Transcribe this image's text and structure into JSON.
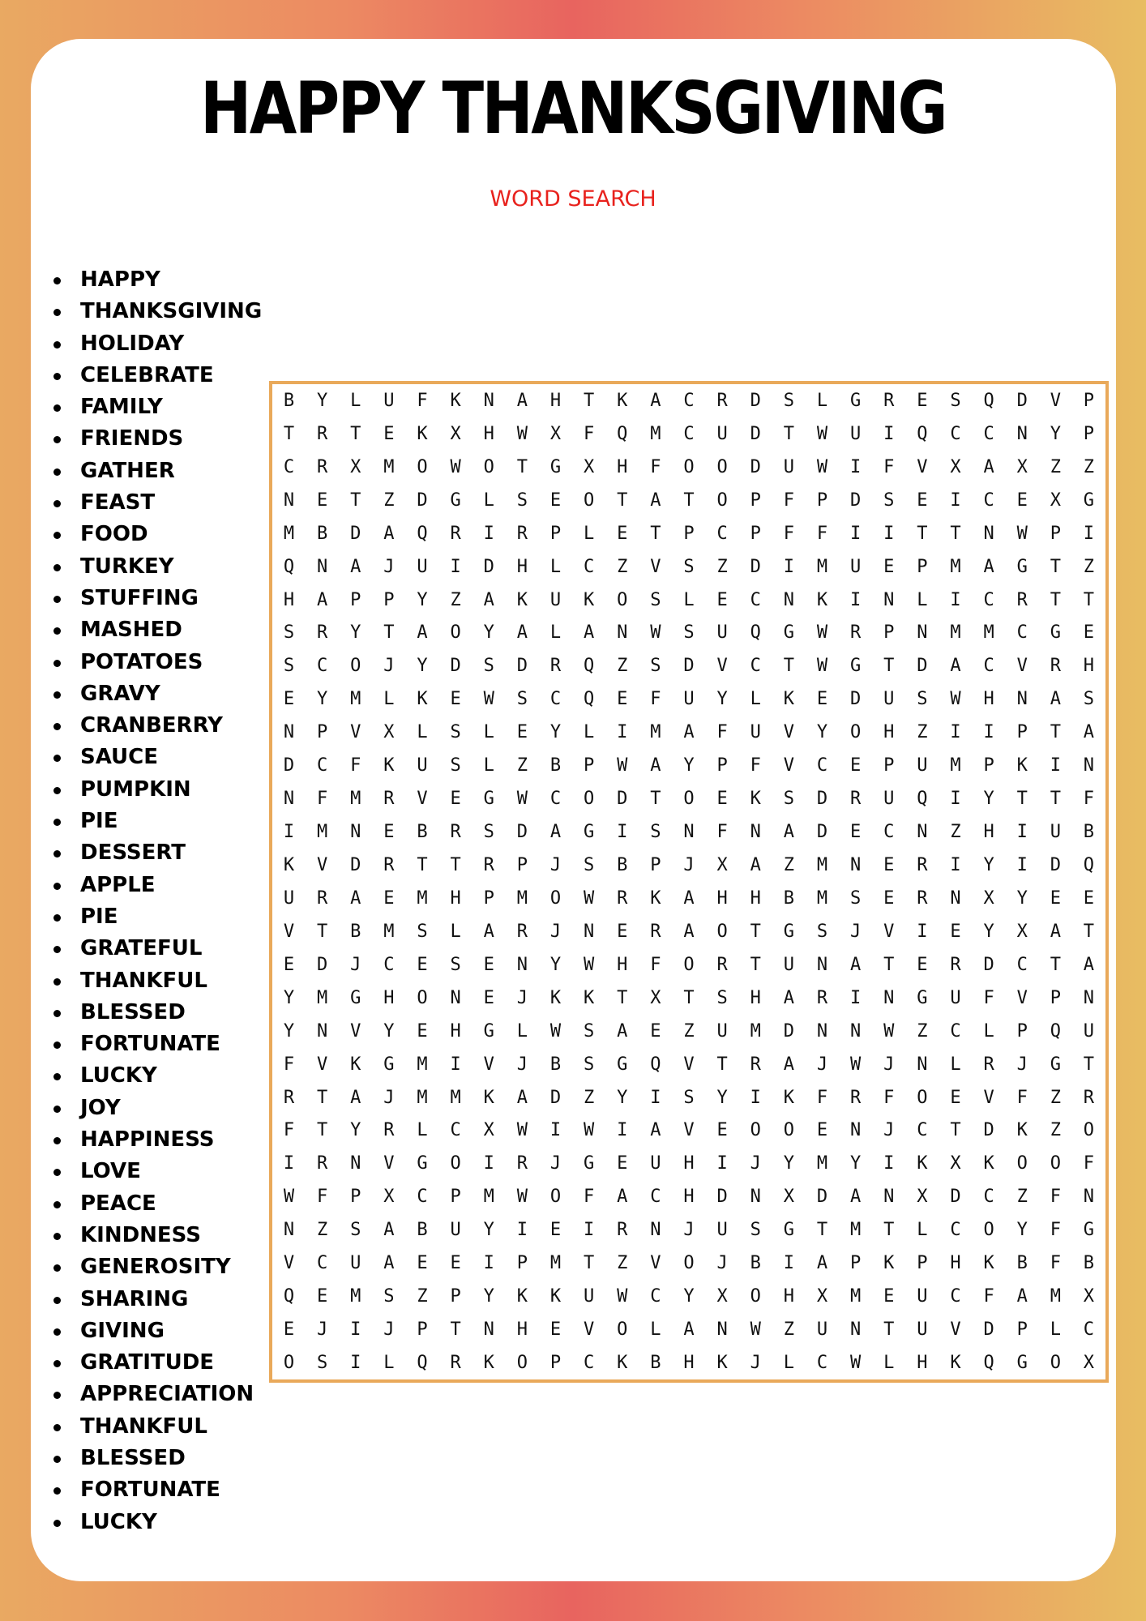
{
  "title": "HAPPY THANKSGIVING",
  "subtitle": "WORD SEARCH",
  "colors": {
    "accent": "#e8221d",
    "grid_border": "#e9a95a",
    "bg_left": "#e9a962",
    "bg_mid": "#e8645f",
    "bg_right": "#e8bd62"
  },
  "words": [
    "HAPPY",
    "THANKSGIVING",
    "HOLIDAY",
    "CELEBRATE",
    "FAMILY",
    "FRIENDS",
    "GATHER",
    "FEAST",
    "FOOD",
    "TURKEY",
    "STUFFING",
    "MASHED",
    "POTATOES",
    "GRAVY",
    "CRANBERRY",
    "SAUCE",
    "PUMPKIN",
    "PIE",
    "DESSERT",
    "APPLE",
    "PIE",
    "GRATEFUL",
    "THANKFUL",
    "BLESSED",
    "FORTUNATE",
    "LUCKY",
    "JOY",
    "HAPPINESS",
    "LOVE",
    "PEACE",
    "KINDNESS",
    "GENEROSITY",
    "SHARING",
    "GIVING",
    "GRATITUDE",
    "APPRECIATION",
    "THANKFUL",
    "BLESSED",
    "FORTUNATE",
    "LUCKY"
  ],
  "grid": [
    "BYLUFKNAHTKACRDSLGRESQDVP",
    "TRTEKXHWXFQMCUDTWUIQCCNYP",
    "CRXMOWOTGXHFOODUWIFVXAXZZ",
    "NETZDGLSEOTATOPFPDSEICEXG",
    "MBDAQRIRPLETPCPFFIITTNWPI",
    "QNAJUIDHLCZVSZDIMUEPMAGTZ",
    "HAPPYZAKUKOSLECNKINLICRTT",
    "SRYTAOYALANWSUQGWRPNMMCGE",
    "SCOJYDSDRQZSDVCTWGTDACVRH",
    "EYMLKEWSCQEFUYLKEDUSWHNAS",
    "NPVXLSLEYLIMAFUVYOHZIIPTA",
    "DCFKUSLZBPWAYPFVCEPUMPKIN",
    "NFMRVEGWCODTOEKSDRUQIYTTF",
    "IMNEBRSDAGISNFNADECNZHIUB",
    "KVDRTTRPJSBPJXAZMNERIYIDQ",
    "URAEMHPMOWRKAHHBMSERNXYEE",
    "VTBMSLARJNERAOTGSJVIEYXAT",
    "EDJCESENYWHFORTUNATERDCTA",
    "YMGHONEJKKTXTSHARINGUFVPN",
    "YNVYEHGLWSAEZUMDNNWZCLPQU",
    "FVKGMIVJBSGQVTRAJWJNLRJGT",
    "RTAJMMKADZYISYIKFRFOEVFZR",
    "FTYRLCXWIWIAVEOOENJCTDKZO",
    "IRNVGOIRJGEUHIJYMYIKXKOOF",
    "WFPXCPMWOFACHDNXDANXDCZFN",
    "NZSABUYIEIRNJUSGTMTLCOYFG",
    "VCUAEEIPMTZVOJBIAPKPHKBFB",
    "QEMSZPYKKUWCYXOHXMEUCFAMX",
    "EJIJPTNHEVOLANWZUNTUVDPLC",
    "OSILQRKOPCKBHKJLCWLHKQGOX"
  ]
}
